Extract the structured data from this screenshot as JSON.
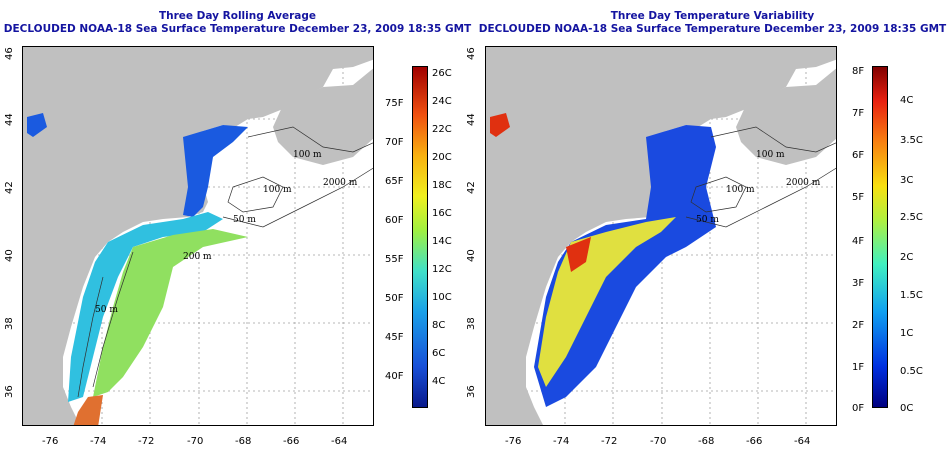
{
  "panels": [
    {
      "title_line1": "Three Day Rolling Average",
      "title_line2": "DECLOUDED NOAA-18 Sea Surface Temperature December 23, 2009 18:35 GMT",
      "contour_labels": [
        "100 m",
        "100 m",
        "2000 m",
        "50 m",
        "200 m",
        "50 m"
      ],
      "colorbar_celsius": [
        "26C",
        "24C",
        "22C",
        "20C",
        "18C",
        "16C",
        "14C",
        "12C",
        "10C",
        "8C",
        "6C",
        "4C"
      ],
      "colorbar_fahrenheit": [
        "75F",
        "70F",
        "65F",
        "60F",
        "55F",
        "50F",
        "45F",
        "40F"
      ]
    },
    {
      "title_line1": "Three Day Temperature Variability",
      "title_line2": "DECLOUDED NOAA-18 Sea Surface Temperature December 23, 2009 18:35 GMT",
      "contour_labels": [
        "100 m",
        "100 m",
        "2000 m",
        "50 m"
      ],
      "colorbar_celsius": [
        "4C",
        "3.5C",
        "3C",
        "2.5C",
        "2C",
        "1.5C",
        "1C",
        "0.5C",
        "0C"
      ],
      "colorbar_fahrenheit": [
        "8F",
        "7F",
        "6F",
        "5F",
        "4F",
        "3F",
        "2F",
        "1F",
        "0F"
      ]
    }
  ],
  "latitudes": [
    "46",
    "44",
    "42",
    "40",
    "38",
    "36"
  ],
  "longitudes": [
    "-76",
    "-74",
    "-72",
    "-70",
    "-68",
    "-66",
    "-64"
  ],
  "colors": {
    "land": "#c0c0c0",
    "title": "#1414a0",
    "grid": "#a0a0a0"
  }
}
